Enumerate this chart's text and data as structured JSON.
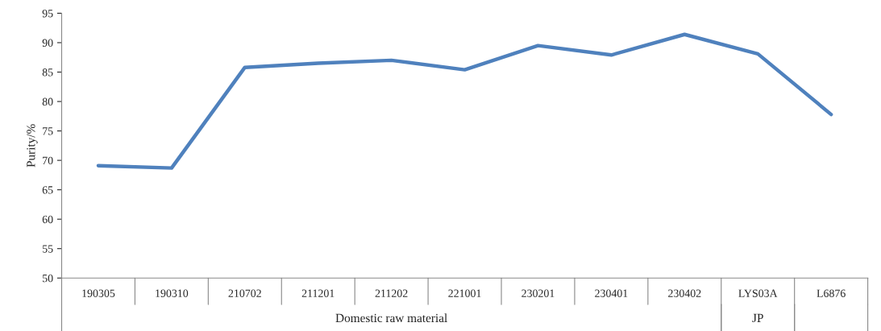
{
  "chart_data": {
    "type": "line",
    "ylabel": "Purity/%",
    "categories": [
      "190305",
      "190310",
      "210702",
      "211201",
      "211202",
      "221001",
      "230201",
      "230401",
      "230402",
      "LYS03A",
      "L6876"
    ],
    "series": [
      {
        "color": "#4f81bd",
        "values": [
          69.1,
          68.7,
          85.8,
          86.5,
          87.0,
          85.4,
          89.5,
          87.9,
          91.4,
          88.1,
          77.8
        ]
      }
    ],
    "ylim": [
      50,
      95
    ],
    "yticks": [
      50,
      55,
      60,
      65,
      70,
      75,
      80,
      85,
      90,
      95
    ],
    "grid": false,
    "legend": false,
    "marker": "none",
    "line_style": "solid",
    "annotations": [
      "Domestic raw material",
      "JP"
    ]
  }
}
